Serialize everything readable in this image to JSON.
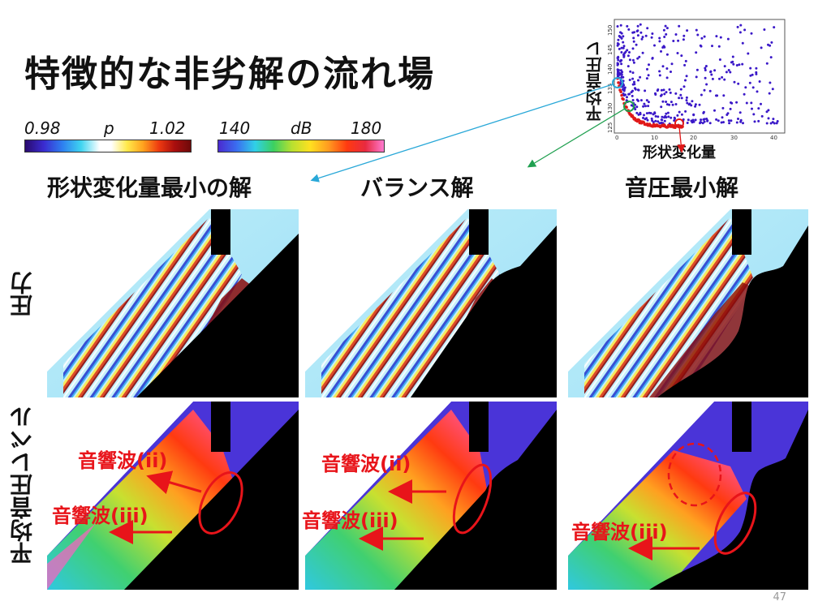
{
  "title": "特徴的な非劣解の流れ場",
  "colorbars": {
    "pressure": {
      "min": "0.98",
      "symbol": "p",
      "max": "1.02"
    },
    "spl": {
      "min": "140",
      "unit": "dB",
      "max": "180"
    }
  },
  "columns": [
    "形状変化量最小の解",
    "バランス解",
    "音圧最小解"
  ],
  "rows": [
    "圧力",
    "平均音圧レベル"
  ],
  "annotations": {
    "wave_ii": "音響波(ii)",
    "wave_iii": "音響波(iii)"
  },
  "scatter": {
    "xlabel": "形状変化量",
    "ylabel": "平均音圧レ",
    "x_ticks": [
      "0",
      "10",
      "20",
      "30",
      "40"
    ],
    "y_ticks": [
      "125",
      "130",
      "135",
      "140",
      "145",
      "150"
    ]
  },
  "page_number": "47",
  "colors": {
    "annotation": "#e8141a",
    "black": "#000000"
  }
}
